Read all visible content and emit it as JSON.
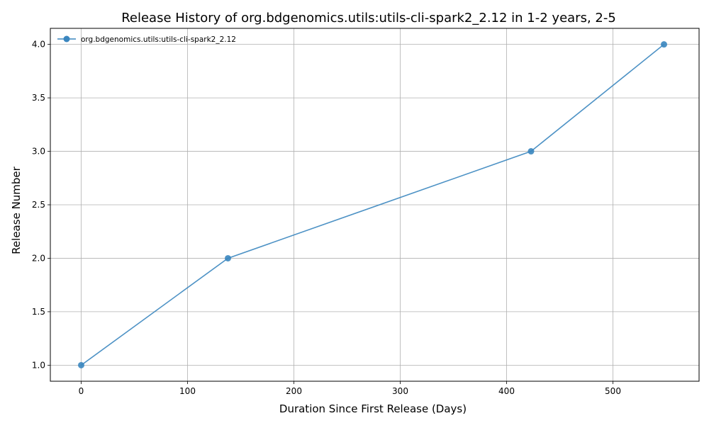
{
  "chart_data": {
    "type": "line",
    "title": "Release History of org.bdgenomics.utils:utils-cli-spark2_2.12 in 1-2 years, 2-5",
    "xlabel": "Duration Since First Release (Days)",
    "ylabel": "Release Number",
    "xlim": [
      -29,
      581
    ],
    "ylim": [
      0.85,
      4.15
    ],
    "x_ticks": [
      0,
      100,
      200,
      300,
      400,
      500
    ],
    "x_tick_labels": [
      "0",
      "100",
      "200",
      "300",
      "400",
      "500"
    ],
    "y_ticks": [
      1.0,
      1.5,
      2.0,
      2.5,
      3.0,
      3.5,
      4.0
    ],
    "y_tick_labels": [
      "1.0",
      "1.5",
      "2.0",
      "2.5",
      "3.0",
      "3.5",
      "4.0"
    ],
    "grid": true,
    "legend_position": "top-left",
    "series": [
      {
        "name": "org.bdgenomics.utils:utils-cli-spark2_2.12",
        "color": "#3a86bf",
        "x": [
          0,
          138,
          423,
          548
        ],
        "y": [
          1,
          2,
          3,
          4
        ]
      }
    ]
  }
}
